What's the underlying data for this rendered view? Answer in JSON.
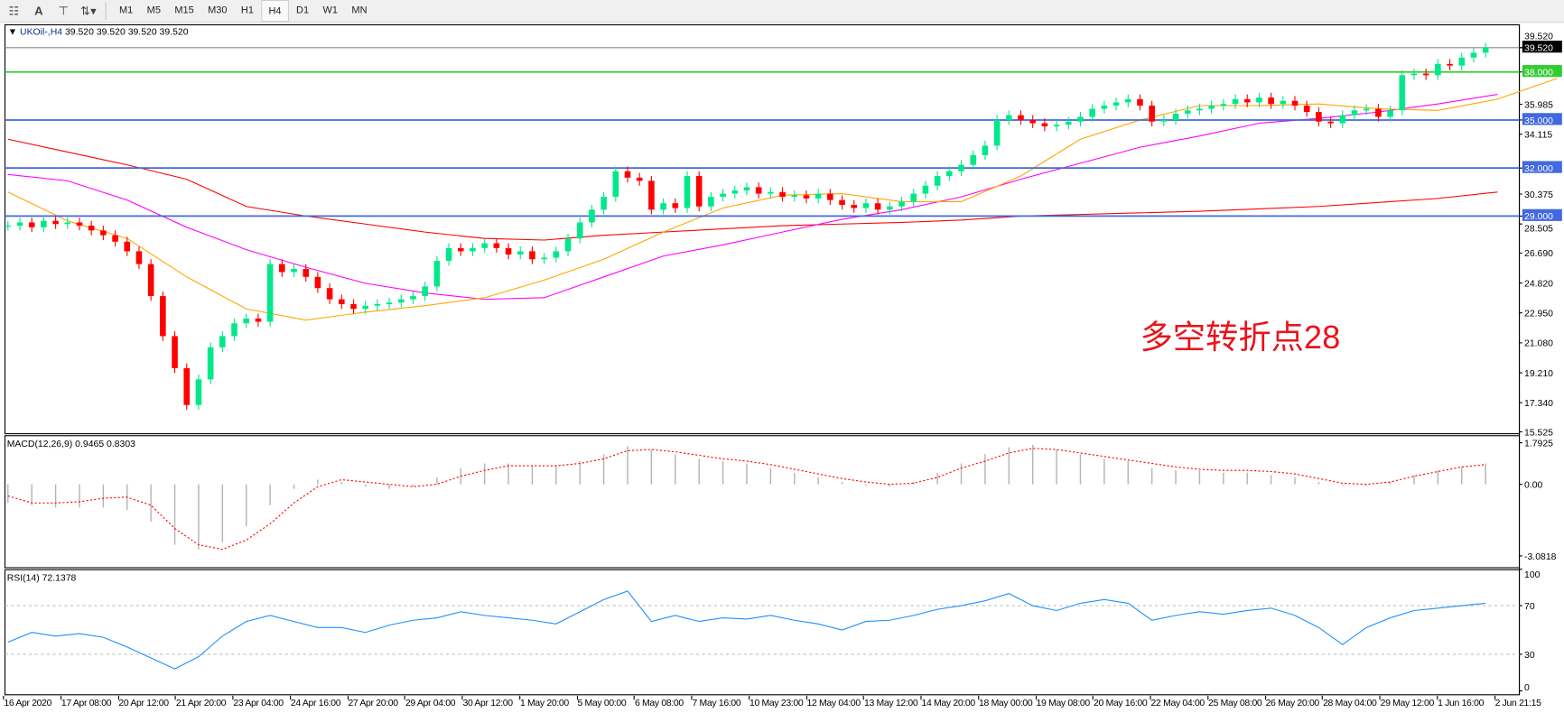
{
  "toolbar": {
    "icons": [
      "fibonacci-fan-icon",
      "text-icon",
      "text-label-icon",
      "arrows-icon"
    ],
    "timeframes": [
      "M1",
      "M5",
      "M15",
      "M30",
      "H1",
      "H4",
      "D1",
      "W1",
      "MN"
    ],
    "active_timeframe": "H4"
  },
  "main": {
    "symbol": "UKOil-,H4",
    "ohlc": "39.520 39.520 39.520 39.520",
    "annotation": "多空转折点28",
    "annotation_color": "#e8141c"
  },
  "macd": {
    "label": "MACD(12,26,9) 0.9465 0.8303"
  },
  "rsi": {
    "label": "RSI(14) 72.1378"
  },
  "colors": {
    "bull": "#00e88a",
    "bear": "#ff0000",
    "ma_fast": "#ffa500",
    "ma_mid": "#ff00ff",
    "ma_slow": "#ff0000",
    "level_blue": "#4169e1",
    "level_green": "#32cd32",
    "rsi": "#1e90ff",
    "macd_hist": "#b4b4b4",
    "macd_signal": "#ff0000"
  },
  "chart_data": [
    {
      "type": "candlestick",
      "title": "UKOil-,H4",
      "ylim": [
        15.525,
        39.52
      ],
      "y_ticks": [
        "39.520",
        "35.985",
        "34.115",
        "30.375",
        "28.505",
        "26.690",
        "24.820",
        "22.950",
        "21.080",
        "19.210",
        "17.340",
        "15.525"
      ],
      "levels": [
        {
          "value": "39.520",
          "color": "#000000",
          "line": "#888888"
        },
        {
          "value": "38.000",
          "color": "#32cd32",
          "line": "#32cd32"
        },
        {
          "value": "35.000",
          "color": "#4169e1",
          "line": "#4169e1"
        },
        {
          "value": "32.000",
          "color": "#4169e1",
          "line": "#4169e1"
        },
        {
          "value": "29.000",
          "color": "#4169e1",
          "line": "#4169e1"
        }
      ],
      "closes": [
        28.4,
        28.6,
        28.3,
        28.7,
        28.5,
        28.6,
        28.4,
        28.1,
        27.8,
        27.4,
        26.8,
        26.0,
        24.0,
        21.5,
        19.5,
        17.2,
        18.8,
        20.8,
        21.5,
        22.3,
        22.6,
        22.4,
        26.0,
        25.5,
        25.7,
        25.2,
        24.5,
        23.8,
        23.5,
        23.2,
        23.4,
        23.5,
        23.6,
        23.8,
        24.0,
        24.6,
        26.2,
        27.0,
        26.8,
        27.0,
        27.3,
        27.0,
        26.6,
        26.8,
        26.3,
        26.4,
        26.8,
        27.6,
        28.6,
        29.4,
        30.2,
        31.8,
        31.4,
        31.2,
        29.4,
        29.8,
        29.5,
        31.5,
        29.6,
        30.2,
        30.4,
        30.6,
        30.8,
        30.4,
        30.5,
        30.2,
        30.3,
        30.1,
        30.4,
        30.0,
        29.7,
        29.5,
        29.8,
        29.4,
        29.6,
        29.9,
        30.4,
        30.9,
        31.5,
        31.8,
        32.2,
        32.8,
        33.4,
        35.0,
        35.3,
        35.0,
        34.8,
        34.6,
        34.7,
        34.9,
        35.2,
        35.7,
        35.9,
        36.1,
        36.3,
        35.9,
        34.9,
        35.0,
        35.4,
        35.6,
        35.7,
        35.9,
        36.0,
        36.3,
        36.1,
        36.4,
        36.0,
        36.2,
        35.9,
        35.5,
        34.9,
        34.8,
        35.3,
        35.6,
        35.7,
        35.2,
        35.6,
        37.8,
        37.9,
        37.8,
        38.5,
        38.4,
        38.9,
        39.2,
        39.52
      ],
      "ma_fast": [
        30.5,
        28.7,
        27.6,
        25.2,
        23.2,
        22.5,
        23.0,
        23.4,
        23.9,
        25.0,
        26.3,
        28.0,
        29.5,
        30.3,
        30.4,
        29.9,
        29.9,
        31.5,
        33.8,
        35.0,
        35.9,
        35.9,
        36.0,
        35.7,
        35.6,
        36.3,
        37.6
      ],
      "ma_mid": [
        31.6,
        31.2,
        30.0,
        28.3,
        26.9,
        25.8,
        24.8,
        24.2,
        23.8,
        23.9,
        25.2,
        26.5,
        27.2,
        28.0,
        28.8,
        29.4,
        30.2,
        31.3,
        32.3,
        33.3,
        34.0,
        34.8,
        35.1,
        35.5,
        36.0,
        36.6
      ],
      "ma_slow": [
        33.8,
        33.0,
        32.2,
        31.3,
        29.6,
        29.0,
        28.5,
        28.0,
        27.6,
        27.5,
        27.8,
        28.0,
        28.2,
        28.4,
        28.5,
        28.6,
        28.75,
        29.0,
        29.1,
        29.2,
        29.3,
        29.45,
        29.6,
        29.85,
        30.1,
        30.5
      ],
      "x_ticks": [
        "16 Apr 2020",
        "17 Apr 08:00",
        "20 Apr 12:00",
        "21 Apr 20:00",
        "23 Apr 04:00",
        "24 Apr 16:00",
        "27 Apr 20:00",
        "29 Apr 04:00",
        "30 Apr 12:00",
        "1 May 20:00",
        "5 May 00:00",
        "6 May 08:00",
        "7 May 16:00",
        "10 May 23:00",
        "12 May 04:00",
        "13 May 12:00",
        "14 May 20:00",
        "18 May 00:00",
        "19 May 08:00",
        "20 May 16:00",
        "22 May 04:00",
        "25 May 08:00",
        "26 May 20:00",
        "28 May 04:00",
        "29 May 12:00",
        "1 Jun 16:00",
        "2 Jun 21:15"
      ]
    },
    {
      "type": "bar",
      "title": "MACD(12,26,9)",
      "ylim": [
        -3.0818,
        1.7925
      ],
      "y_ticks": [
        "1.7925",
        "0.00",
        "-3.0818"
      ],
      "histogram": [
        -0.8,
        -0.9,
        -1.0,
        -1.0,
        -1.0,
        -1.1,
        -1.6,
        -2.6,
        -2.8,
        -2.5,
        -1.8,
        -0.9,
        -0.2,
        0.2,
        0.1,
        -0.1,
        -0.2,
        -0.1,
        0.3,
        0.7,
        0.9,
        0.9,
        0.8,
        0.8,
        1.0,
        1.3,
        1.65,
        1.5,
        1.3,
        1.1,
        1.0,
        0.9,
        0.7,
        0.5,
        0.3,
        0.1,
        -0.05,
        -0.1,
        0.1,
        0.5,
        0.9,
        1.3,
        1.6,
        1.7,
        1.5,
        1.3,
        1.1,
        1.0,
        0.7,
        0.6,
        0.6,
        0.5,
        0.5,
        0.4,
        0.3,
        0.1,
        -0.05,
        -0.05,
        0.1,
        0.4,
        0.6,
        0.75,
        0.9
      ],
      "signal": [
        -0.5,
        -0.8,
        -0.8,
        -0.75,
        -0.6,
        -0.55,
        -0.9,
        -1.9,
        -2.6,
        -2.8,
        -2.4,
        -1.7,
        -0.8,
        -0.1,
        0.2,
        0.1,
        0.0,
        -0.1,
        0.0,
        0.35,
        0.6,
        0.8,
        0.8,
        0.8,
        0.9,
        1.1,
        1.45,
        1.5,
        1.4,
        1.25,
        1.1,
        1.0,
        0.85,
        0.65,
        0.45,
        0.25,
        0.1,
        0.0,
        0.05,
        0.3,
        0.7,
        1.0,
        1.35,
        1.55,
        1.5,
        1.35,
        1.2,
        1.05,
        0.9,
        0.75,
        0.65,
        0.6,
        0.6,
        0.55,
        0.45,
        0.25,
        0.05,
        0.0,
        0.1,
        0.35,
        0.55,
        0.75,
        0.85
      ]
    },
    {
      "type": "line",
      "title": "RSI(14)",
      "ylim": [
        0,
        100
      ],
      "y_ticks": [
        "100",
        "70",
        "30",
        "0"
      ],
      "levels": [
        70,
        30
      ],
      "values": [
        40,
        48,
        45,
        47,
        44,
        36,
        27,
        18,
        28,
        45,
        57,
        62,
        57,
        52,
        52,
        48,
        54,
        58,
        60,
        65,
        62,
        60,
        58,
        55,
        65,
        75,
        82,
        57,
        62,
        57,
        60,
        59,
        62,
        58,
        55,
        50,
        57,
        58,
        62,
        67,
        70,
        74,
        80,
        70,
        66,
        72,
        75,
        72,
        58,
        62,
        65,
        63,
        66,
        68,
        62,
        52,
        38,
        52,
        60,
        66,
        68,
        70,
        72
      ]
    }
  ]
}
